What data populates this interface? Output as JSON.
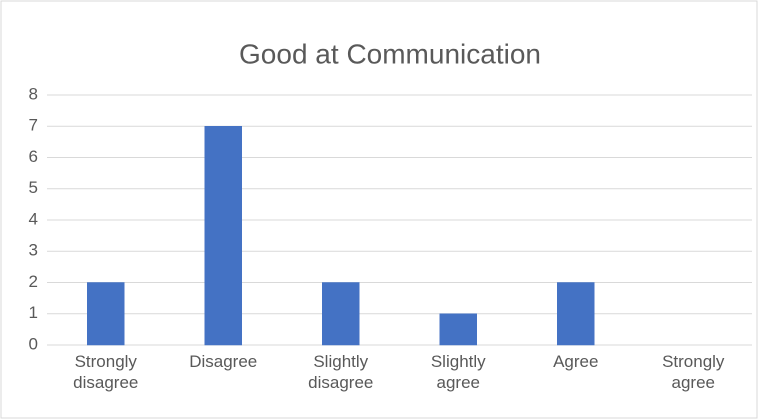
{
  "chart_data": {
    "type": "bar",
    "title": "Good at Communication",
    "categories": [
      "Strongly disagree",
      "Disagree",
      "Slightly disagree",
      "Slightly agree",
      "Agree",
      "Strongly agree"
    ],
    "values": [
      2,
      7,
      2,
      1,
      2,
      0
    ],
    "color": "#4472c4",
    "ylim": [
      0,
      8
    ],
    "yticks": [
      0,
      1,
      2,
      3,
      4,
      5,
      6,
      7,
      8
    ],
    "grid": true
  }
}
